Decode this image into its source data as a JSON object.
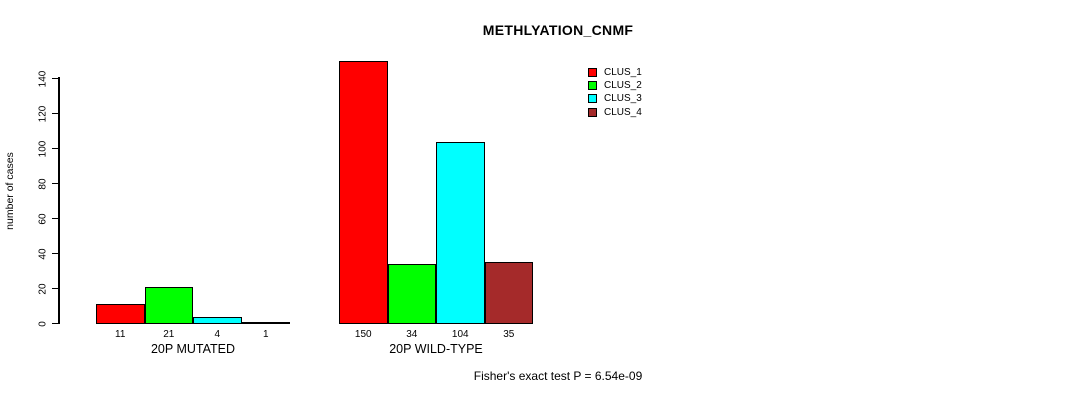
{
  "title": "METHLYATION_CNMF",
  "footer": "Fisher's exact test P = 6.54e-09",
  "y_axis": {
    "label": "number of cases",
    "ticks": [
      0,
      20,
      40,
      60,
      80,
      100,
      120,
      140
    ]
  },
  "legend": {
    "position": "top-right",
    "items": [
      {
        "label": "CLUS_1",
        "color": "#ff0000"
      },
      {
        "label": "CLUS_2",
        "color": "#00ff00"
      },
      {
        "label": "CLUS_3",
        "color": "#00ffff"
      },
      {
        "label": "CLUS_4",
        "color": "#a52a2a"
      }
    ]
  },
  "chart_data": {
    "type": "bar",
    "title": "METHLYATION_CNMF",
    "xlabel": "",
    "ylabel": "number of cases",
    "ylim": [
      0,
      140
    ],
    "yticks": [
      0,
      20,
      40,
      60,
      80,
      100,
      120,
      140
    ],
    "grid": false,
    "legend_position": "top-right",
    "categories": [
      "20P MUTATED",
      "20P WILD-TYPE"
    ],
    "series": [
      {
        "name": "CLUS_1",
        "color": "#ff0000",
        "values": [
          11,
          150
        ]
      },
      {
        "name": "CLUS_2",
        "color": "#00ff00",
        "values": [
          21,
          34
        ]
      },
      {
        "name": "CLUS_3",
        "color": "#00ffff",
        "values": [
          4,
          104
        ]
      },
      {
        "name": "CLUS_4",
        "color": "#a52a2a",
        "values": [
          1,
          35
        ]
      }
    ],
    "bar_value_labels": [
      [
        11,
        21,
        4,
        1
      ],
      [
        150,
        34,
        104,
        35
      ]
    ],
    "annotation": "Fisher's exact test P = 6.54e-09"
  }
}
